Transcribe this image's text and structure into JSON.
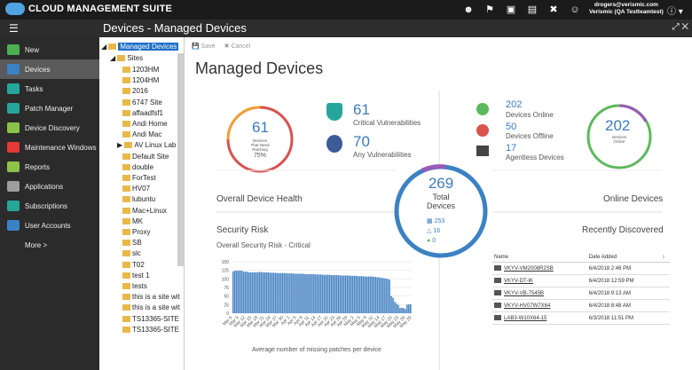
{
  "app": {
    "name": "CLOUD MANAGEMENT SUITE",
    "page_title": "Devices - Managed Devices"
  },
  "user": {
    "email": "drogers@verismic.com",
    "org": "Verismic (QA Testteamtest)"
  },
  "top_icons": [
    "person-icon",
    "flag-icon",
    "chat-icon",
    "document-icon",
    "tools-icon",
    "smiley-icon",
    "info-icon"
  ],
  "sidebar": {
    "items": [
      {
        "label": "New",
        "icon": "plus-icon",
        "color": "#4caf50"
      },
      {
        "label": "Devices",
        "icon": "monitor-icon",
        "color": "#3b82c4",
        "active": true
      },
      {
        "label": "Tasks",
        "icon": "tasks-icon",
        "color": "#26a69a"
      },
      {
        "label": "Patch Manager",
        "icon": "shield-icon",
        "color": "#26a69a"
      },
      {
        "label": "Device Discovery",
        "icon": "discovery-icon",
        "color": "#8bc34a"
      },
      {
        "label": "Maintenance Windows",
        "icon": "x-icon",
        "color": "#e53935"
      },
      {
        "label": "Reports",
        "icon": "chart-icon",
        "color": "#8bc34a"
      },
      {
        "label": "Applications",
        "icon": "apps-icon",
        "color": "#9e9e9e"
      },
      {
        "label": "Subscriptions",
        "icon": "tag-icon",
        "color": "#26a69a"
      },
      {
        "label": "User Accounts",
        "icon": "user-icon",
        "color": "#3b82c4"
      },
      {
        "label": "More >",
        "icon": "",
        "color": ""
      }
    ]
  },
  "tree": {
    "root": "Managed Devices",
    "sites": "Sites",
    "items": [
      "1203HM",
      "1204HM",
      "2016",
      "6747 Site",
      "affaadfsf1",
      "Andi Home",
      "Andi Mac",
      "AV Linux Lab",
      "Default Site",
      "double",
      "ForTest",
      "HV07",
      "lubuntu",
      "Mac+Linux",
      "MK",
      "Proxy",
      "SB",
      "slc",
      "T02",
      "test 1",
      "tests",
      "this is a site wit",
      "this is a site wit",
      "TS13365-SITE",
      "TS13365-SITE"
    ]
  },
  "toolbar": {
    "save": "Save",
    "cancel": "Cancel"
  },
  "dashboard": {
    "title": "Managed Devices",
    "patching": {
      "value": "61",
      "l1": "Devices",
      "l2": "That Need",
      "l3": "Patching",
      "pct": "75%",
      "fraction": 0.75
    },
    "critical": {
      "value": "61",
      "label": "Critical Vulnerabilities"
    },
    "any": {
      "value": "70",
      "label": "Any Vulnerabilities"
    },
    "online": {
      "value": "202",
      "label": "Devices Online"
    },
    "offline": {
      "value": "50",
      "label": "Devices Offline"
    },
    "agentless": {
      "value": "17",
      "label": "Agentless Devices"
    },
    "online_ring": {
      "value": "202",
      "l1": "Devices",
      "l2": "Online"
    },
    "total": {
      "value": "269",
      "l1": "Total",
      "l2": "Devices",
      "windows": "253",
      "linux": "16",
      "mac": "0"
    },
    "health_title": "Overall Device Health",
    "online_title": "Online Devices",
    "security_title": "Security Risk",
    "risk_label": "Overall Security Risk - Critical",
    "recent_title": "Recently Discovered",
    "chart_caption": "Average number of missing patches per device"
  },
  "recent": {
    "headers": [
      "Name",
      "Date Added",
      "↕"
    ],
    "rows": [
      {
        "name": "VKYV-VM2008R2SB",
        "date": "6/4/2018 2:46 PM"
      },
      {
        "name": "VKYV-DT-IK",
        "date": "6/4/2018 12:59 PM"
      },
      {
        "name": "VKYV-VB-7545B",
        "date": "6/4/2018 9:13 AM"
      },
      {
        "name": "VKYV-HV07W7X64",
        "date": "6/4/2018 8:48 AM"
      },
      {
        "name": "LAB3-W10X64-15",
        "date": "6/3/2018 11:51 PM"
      }
    ]
  },
  "chart_data": {
    "type": "bar",
    "title": "",
    "xlabel": "Average number of missing patches per device",
    "ylabel": "",
    "ylim": [
      0,
      150
    ],
    "yticks": [
      0,
      25,
      50,
      75,
      100,
      125,
      150
    ],
    "xticks": [
      "Mar 6",
      "Mar 9",
      "Mar 12",
      "Mar 15",
      "Mar 18",
      "Mar 21",
      "Mar 24",
      "Mar 27",
      "Mar 30",
      "Apr 2",
      "Apr 5",
      "Apr 8",
      "Apr 11",
      "Apr 14",
      "Apr 17",
      "Apr 20",
      "Apr 23",
      "Apr 26",
      "Apr 29",
      "May 2",
      "May 5",
      "May 8",
      "May 11",
      "May 14",
      "May 17",
      "May 20",
      "May 23",
      "May 26",
      "May 29"
    ],
    "values": [
      122,
      124,
      124,
      124,
      124,
      124,
      121,
      121,
      121,
      119,
      119,
      119,
      119,
      119,
      120,
      120,
      120,
      119,
      119,
      119,
      119,
      118,
      118,
      118,
      118,
      117,
      117,
      117,
      117,
      117,
      117,
      116,
      116,
      116,
      116,
      115,
      115,
      115,
      115,
      115,
      115,
      114,
      114,
      114,
      114,
      114,
      114,
      113,
      113,
      113,
      113,
      112,
      112,
      112,
      112,
      112,
      111,
      111,
      111,
      111,
      111,
      110,
      110,
      110,
      110,
      110,
      110,
      109,
      109,
      109,
      109,
      108,
      108,
      108,
      108,
      107,
      107,
      107,
      107,
      107,
      106,
      106,
      105,
      105,
      103,
      103,
      102,
      101,
      100,
      98,
      50,
      45,
      33,
      28,
      24,
      15,
      16,
      15,
      12,
      25,
      26,
      26
    ]
  }
}
